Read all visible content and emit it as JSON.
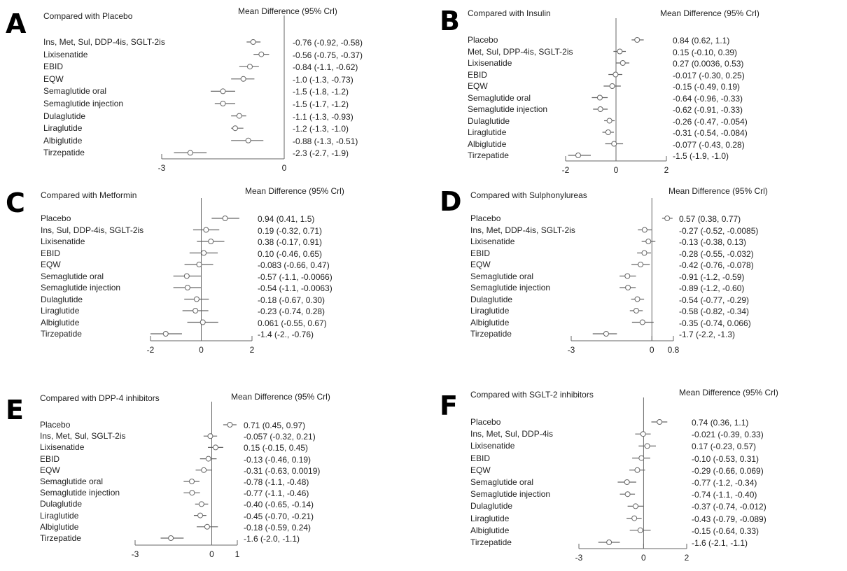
{
  "chart_data": [
    {
      "type": "forest",
      "panel": "A",
      "title": "Compared with Placebo",
      "header": "Mean Difference (95% Crl)",
      "ticks": [
        "-3",
        "0"
      ],
      "xlim": [
        -3,
        0
      ],
      "rows": [
        {
          "label": "Ins, Met, Sul, DDP-4is, SGLT-2is",
          "mean": -0.76,
          "lo": -0.92,
          "hi": -0.58,
          "text": "-0.76 (-0.92, -0.58)"
        },
        {
          "label": "Lixisenatide",
          "mean": -0.56,
          "lo": -0.75,
          "hi": -0.37,
          "text": "-0.56 (-0.75, -0.37)"
        },
        {
          "label": "EBID",
          "mean": -0.84,
          "lo": -1.1,
          "hi": -0.62,
          "text": "-0.84 (-1.1, -0.62)"
        },
        {
          "label": "EQW",
          "mean": -1.0,
          "lo": -1.3,
          "hi": -0.73,
          "text": "-1.0 (-1.3, -0.73)"
        },
        {
          "label": "Semaglutide oral",
          "mean": -1.5,
          "lo": -1.8,
          "hi": -1.2,
          "text": "-1.5 (-1.8, -1.2)"
        },
        {
          "label": "Semaglutide injection",
          "mean": -1.5,
          "lo": -1.7,
          "hi": -1.2,
          "text": "-1.5 (-1.7, -1.2)"
        },
        {
          "label": "Dulaglutide",
          "mean": -1.1,
          "lo": -1.3,
          "hi": -0.93,
          "text": "-1.1 (-1.3, -0.93)"
        },
        {
          "label": "Liraglutide",
          "mean": -1.2,
          "lo": -1.3,
          "hi": -1.0,
          "text": "-1.2 (-1.3, -1.0)"
        },
        {
          "label": "Albiglutide",
          "mean": -0.88,
          "lo": -1.3,
          "hi": -0.51,
          "text": "-0.88 (-1.3, -0.51)"
        },
        {
          "label": "Tirzepatide",
          "mean": -2.3,
          "lo": -2.7,
          "hi": -1.9,
          "text": "-2.3 (-2.7, -1.9)"
        }
      ]
    },
    {
      "type": "forest",
      "panel": "B",
      "title": "Compared with Insulin",
      "header": "Mean Difference (95% Crl)",
      "ticks": [
        "-2",
        "0",
        "2"
      ],
      "xlim": [
        -2,
        2
      ],
      "rows": [
        {
          "label": "Placebo",
          "mean": 0.84,
          "lo": 0.62,
          "hi": 1.1,
          "text": "0.84 (0.62, 1.1)"
        },
        {
          "label": "Met, Sul, DPP-4is, SGLT-2is",
          "mean": 0.15,
          "lo": -0.1,
          "hi": 0.39,
          "text": "0.15 (-0.10, 0.39)"
        },
        {
          "label": "Lixisenatide",
          "mean": 0.27,
          "lo": 0.0036,
          "hi": 0.53,
          "text": "0.27 (0.0036, 0.53)"
        },
        {
          "label": "EBID",
          "mean": -0.017,
          "lo": -0.3,
          "hi": 0.25,
          "text": "-0.017 (-0.30, 0.25)"
        },
        {
          "label": "EQW",
          "mean": -0.15,
          "lo": -0.49,
          "hi": 0.19,
          "text": "-0.15 (-0.49, 0.19)"
        },
        {
          "label": "Semaglutide oral",
          "mean": -0.64,
          "lo": -0.96,
          "hi": -0.33,
          "text": "-0.64 (-0.96, -0.33)"
        },
        {
          "label": "Semaglutide injection",
          "mean": -0.62,
          "lo": -0.91,
          "hi": -0.33,
          "text": "-0.62 (-0.91, -0.33)"
        },
        {
          "label": "Dulaglutide",
          "mean": -0.26,
          "lo": -0.47,
          "hi": -0.054,
          "text": "-0.26 (-0.47, -0.054)"
        },
        {
          "label": "Liraglutide",
          "mean": -0.31,
          "lo": -0.54,
          "hi": -0.084,
          "text": "-0.31 (-0.54, -0.084)"
        },
        {
          "label": "Albiglutide",
          "mean": -0.077,
          "lo": -0.43,
          "hi": 0.28,
          "text": "-0.077 (-0.43, 0.28)"
        },
        {
          "label": "Tirzepatide",
          "mean": -1.5,
          "lo": -1.9,
          "hi": -1.0,
          "text": "-1.5 (-1.9, -1.0)"
        }
      ]
    },
    {
      "type": "forest",
      "panel": "C",
      "title": "Compared with Metformin",
      "header": "Mean Difference (95% Crl)",
      "ticks": [
        "-2",
        "0",
        "2"
      ],
      "xlim": [
        -2,
        2
      ],
      "rows": [
        {
          "label": "Placebo",
          "mean": 0.94,
          "lo": 0.41,
          "hi": 1.5,
          "text": "0.94 (0.41, 1.5)"
        },
        {
          "label": "Ins, Sul, DDP-4is, SGLT-2is",
          "mean": 0.19,
          "lo": -0.32,
          "hi": 0.71,
          "text": "0.19 (-0.32, 0.71)"
        },
        {
          "label": "Lixisenatide",
          "mean": 0.38,
          "lo": -0.17,
          "hi": 0.91,
          "text": "0.38 (-0.17, 0.91)"
        },
        {
          "label": "EBID",
          "mean": 0.1,
          "lo": -0.46,
          "hi": 0.65,
          "text": "0.10 (-0.46, 0.65)"
        },
        {
          "label": "EQW",
          "mean": -0.083,
          "lo": -0.66,
          "hi": 0.47,
          "text": "-0.083 (-0.66, 0.47)"
        },
        {
          "label": "Semaglutide oral",
          "mean": -0.57,
          "lo": -1.1,
          "hi": -0.0066,
          "text": "-0.57 (-1.1, -0.0066)"
        },
        {
          "label": "Semaglutide injection",
          "mean": -0.54,
          "lo": -1.1,
          "hi": -0.0063,
          "text": "-0.54 (-1.1, -0.0063)"
        },
        {
          "label": "Dulaglutide",
          "mean": -0.18,
          "lo": -0.67,
          "hi": 0.3,
          "text": "-0.18 (-0.67, 0.30)"
        },
        {
          "label": "Liraglutide",
          "mean": -0.23,
          "lo": -0.74,
          "hi": 0.28,
          "text": "-0.23 (-0.74, 0.28)"
        },
        {
          "label": "Albiglutide",
          "mean": 0.061,
          "lo": -0.55,
          "hi": 0.67,
          "text": "0.061 (-0.55, 0.67)"
        },
        {
          "label": "Tirzepatide",
          "mean": -1.4,
          "lo": -2.0,
          "hi": -0.76,
          "text": "-1.4 (-2., -0.76)"
        }
      ]
    },
    {
      "type": "forest",
      "panel": "D",
      "title": "Compared with Sulphonylureas",
      "header": "Mean Difference (95% Crl)",
      "ticks": [
        "-3",
        "0",
        "0.8"
      ],
      "xlim": [
        -3,
        0.8
      ],
      "rows": [
        {
          "label": "Placebo",
          "mean": 0.57,
          "lo": 0.38,
          "hi": 0.77,
          "text": "0.57 (0.38, 0.77)"
        },
        {
          "label": "Ins, Met, DDP-4is, SGLT-2is",
          "mean": -0.27,
          "lo": -0.52,
          "hi": -0.0085,
          "text": "-0.27 (-0.52, -0.0085)"
        },
        {
          "label": "Lixisenatide",
          "mean": -0.13,
          "lo": -0.38,
          "hi": 0.13,
          "text": "-0.13 (-0.38, 0.13)"
        },
        {
          "label": "EBID",
          "mean": -0.28,
          "lo": -0.55,
          "hi": -0.032,
          "text": "-0.28 (-0.55, -0.032)"
        },
        {
          "label": "EQW",
          "mean": -0.42,
          "lo": -0.76,
          "hi": -0.078,
          "text": "-0.42 (-0.76, -0.078)"
        },
        {
          "label": "Semaglutide oral",
          "mean": -0.91,
          "lo": -1.2,
          "hi": -0.59,
          "text": "-0.91 (-1.2, -0.59)"
        },
        {
          "label": "Semaglutide injection",
          "mean": -0.89,
          "lo": -1.2,
          "hi": -0.6,
          "text": "-0.89 (-1.2, -0.60)"
        },
        {
          "label": "Dulaglutide",
          "mean": -0.54,
          "lo": -0.77,
          "hi": -0.29,
          "text": "-0.54 (-0.77, -0.29)"
        },
        {
          "label": "Liraglutide",
          "mean": -0.58,
          "lo": -0.82,
          "hi": -0.34,
          "text": "-0.58 (-0.82, -0.34)"
        },
        {
          "label": "Albiglutide",
          "mean": -0.35,
          "lo": -0.74,
          "hi": 0.066,
          "text": "-0.35 (-0.74, 0.066)"
        },
        {
          "label": "Tirzepatide",
          "mean": -1.7,
          "lo": -2.2,
          "hi": -1.3,
          "text": "-1.7 (-2.2, -1.3)"
        }
      ]
    },
    {
      "type": "forest",
      "panel": "E",
      "title": "Compared with DPP-4 inhibitors",
      "header": "Mean Difference (95% Crl)",
      "ticks": [
        "-3",
        "0",
        "1"
      ],
      "xlim": [
        -3,
        1
      ],
      "rows": [
        {
          "label": "Placebo",
          "mean": 0.71,
          "lo": 0.45,
          "hi": 0.97,
          "text": "0.71 (0.45, 0.97)"
        },
        {
          "label": "Ins, Met, Sul, SGLT-2is",
          "mean": -0.057,
          "lo": -0.32,
          "hi": 0.21,
          "text": "-0.057 (-0.32, 0.21)"
        },
        {
          "label": "Lixisenatide",
          "mean": 0.15,
          "lo": -0.15,
          "hi": 0.45,
          "text": "0.15 (-0.15, 0.45)"
        },
        {
          "label": "EBID",
          "mean": -0.13,
          "lo": -0.46,
          "hi": 0.19,
          "text": "-0.13 (-0.46, 0.19)"
        },
        {
          "label": "EQW",
          "mean": -0.31,
          "lo": -0.63,
          "hi": 0.0019,
          "text": "-0.31 (-0.63, 0.0019)"
        },
        {
          "label": "Semaglutide oral",
          "mean": -0.78,
          "lo": -1.1,
          "hi": -0.48,
          "text": "-0.78 (-1.1, -0.48)"
        },
        {
          "label": "Semaglutide injection",
          "mean": -0.77,
          "lo": -1.1,
          "hi": -0.46,
          "text": "-0.77 (-1.1, -0.46)"
        },
        {
          "label": "Dulaglutide",
          "mean": -0.4,
          "lo": -0.65,
          "hi": -0.14,
          "text": "-0.40 (-0.65, -0.14)"
        },
        {
          "label": "Liraglutide",
          "mean": -0.45,
          "lo": -0.7,
          "hi": -0.21,
          "text": "-0.45 (-0.70, -0.21)"
        },
        {
          "label": "Albiglutide",
          "mean": -0.18,
          "lo": -0.59,
          "hi": 0.24,
          "text": "-0.18 (-0.59, 0.24)"
        },
        {
          "label": "Tirzepatide",
          "mean": -1.6,
          "lo": -2.0,
          "hi": -1.1,
          "text": "-1.6 (-2.0, -1.1)"
        }
      ]
    },
    {
      "type": "forest",
      "panel": "F",
      "title": "Compared with SGLT-2 inhibitors",
      "header": "Mean Difference (95% Crl)",
      "ticks": [
        "-3",
        "0",
        "2"
      ],
      "xlim": [
        -3,
        2
      ],
      "rows": [
        {
          "label": "Placebo",
          "mean": 0.74,
          "lo": 0.36,
          "hi": 1.1,
          "text": "0.74 (0.36, 1.1)"
        },
        {
          "label": "Ins, Met, Sul, DDP-4is",
          "mean": -0.021,
          "lo": -0.39,
          "hi": 0.33,
          "text": "-0.021 (-0.39, 0.33)"
        },
        {
          "label": "Lixisenatide",
          "mean": 0.17,
          "lo": -0.23,
          "hi": 0.57,
          "text": "0.17 (-0.23, 0.57)"
        },
        {
          "label": "EBID",
          "mean": -0.1,
          "lo": -0.53,
          "hi": 0.31,
          "text": "-0.10 (-0.53, 0.31)"
        },
        {
          "label": "EQW",
          "mean": -0.29,
          "lo": -0.66,
          "hi": 0.069,
          "text": "-0.29 (-0.66, 0.069)"
        },
        {
          "label": "Semaglutide oral",
          "mean": -0.77,
          "lo": -1.2,
          "hi": -0.34,
          "text": "-0.77 (-1.2, -0.34)"
        },
        {
          "label": "Semaglutide injection",
          "mean": -0.74,
          "lo": -1.1,
          "hi": -0.4,
          "text": "-0.74 (-1.1, -0.40)"
        },
        {
          "label": "Dulaglutide",
          "mean": -0.37,
          "lo": -0.74,
          "hi": -0.012,
          "text": "-0.37 (-0.74, -0.012)"
        },
        {
          "label": "Liraglutide",
          "mean": -0.43,
          "lo": -0.79,
          "hi": -0.089,
          "text": "-0.43 (-0.79, -0.089)"
        },
        {
          "label": "Albiglutide",
          "mean": -0.15,
          "lo": -0.64,
          "hi": 0.33,
          "text": "-0.15 (-0.64, 0.33)"
        },
        {
          "label": "Tirzepatide",
          "mean": -1.6,
          "lo": -2.1,
          "hi": -1.1,
          "text": "-1.6 (-2.1, -1.1)"
        }
      ]
    }
  ],
  "colors": {
    "line": "#666666",
    "text": "#222222"
  }
}
